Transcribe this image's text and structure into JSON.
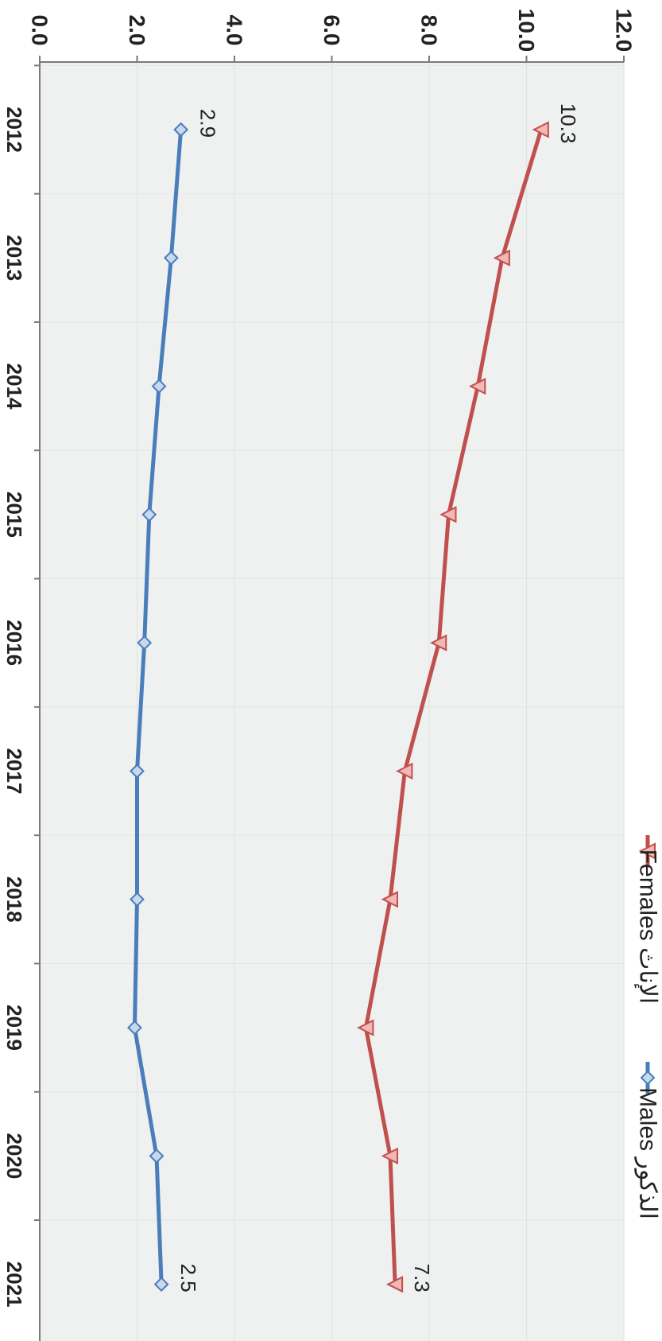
{
  "chart_data": {
    "type": "line",
    "orientation": "rotated-90-clockwise",
    "categories": [
      "2012",
      "2013",
      "2014",
      "2015",
      "2016",
      "2017",
      "2018",
      "2019",
      "2020",
      "2021"
    ],
    "ylim": [
      0,
      12
    ],
    "yticks": [
      "0.0",
      "2.0",
      "4.0",
      "6.0",
      "8.0",
      "10.0",
      "12.0"
    ],
    "grid": true,
    "legend_position": "top",
    "series": [
      {
        "name": "Males الذكور",
        "color": "#4a7ebb",
        "marker": "diamond",
        "values": [
          2.9,
          2.7,
          2.45,
          2.25,
          2.15,
          2.0,
          2.0,
          1.95,
          2.4,
          2.5
        ]
      },
      {
        "name": "Females الإناث",
        "color": "#c0504d",
        "marker": "triangle",
        "values": [
          10.3,
          9.5,
          9.0,
          8.4,
          8.2,
          7.5,
          7.2,
          6.7,
          7.2,
          7.3
        ]
      }
    ],
    "data_labels": [
      {
        "series": 0,
        "index": 0,
        "text": "2.9"
      },
      {
        "series": 0,
        "index": 9,
        "text": "2.5"
      },
      {
        "series": 1,
        "index": 0,
        "text": "10.3"
      },
      {
        "series": 1,
        "index": 9,
        "text": "7.3"
      }
    ]
  }
}
